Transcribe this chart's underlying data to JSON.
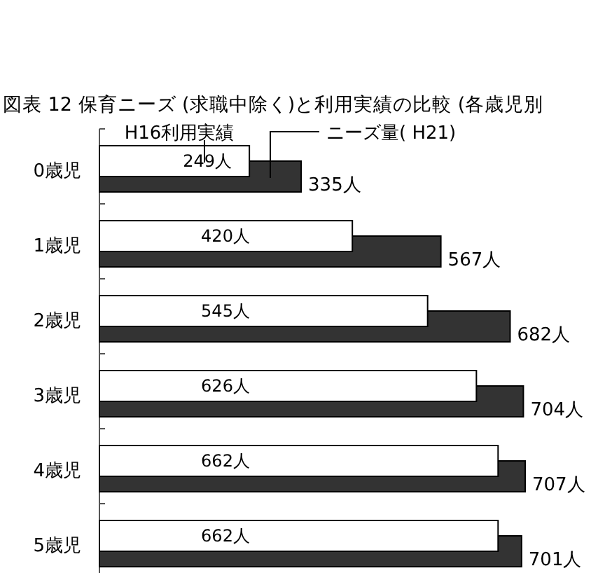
{
  "chart_data": {
    "type": "bar",
    "orientation": "horizontal",
    "title": "図表 12  保育ニーズ (求職中除く)と利用実績の比較 (各歳児別",
    "categories": [
      "0歳児",
      "1歳児",
      "2歳児",
      "3歳児",
      "4歳児",
      "5歳児"
    ],
    "series": [
      {
        "name": "H16利用実績",
        "color": "#ffffff",
        "values": [
          249,
          420,
          545,
          626,
          662,
          662
        ],
        "value_labels": [
          "249人",
          "420人",
          "545人",
          "626人",
          "662人",
          "662人"
        ]
      },
      {
        "name": "ニーズ量( H21)",
        "color": "#333333",
        "values": [
          335,
          567,
          682,
          704,
          707,
          701
        ],
        "value_labels": [
          "335人",
          "567人",
          "682人",
          "704人",
          "707人",
          "701人"
        ]
      }
    ],
    "legend": "top"
  }
}
